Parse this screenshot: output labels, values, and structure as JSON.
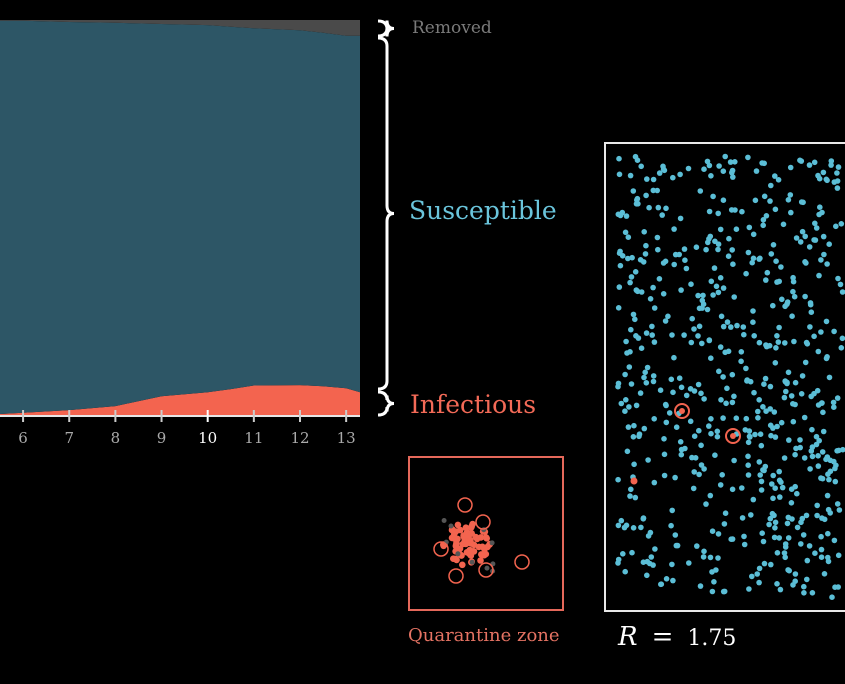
{
  "colors": {
    "susceptible": "#2d5666",
    "infectious": "#f3644f",
    "removed": "#4a4a4a",
    "susceptible_dot": "#5bbed6",
    "infectious_label": "#f36a57",
    "susceptible_label": "#6ac5dc",
    "removed_label": "#7a7a7a",
    "quarantine_label": "#e57363",
    "axis": "#aaaaaa"
  },
  "legend": {
    "removed": "Removed",
    "susceptible": "Susceptible",
    "infectious": "Infectious"
  },
  "quarantine": {
    "label": "Quarantine zone"
  },
  "readout": {
    "symbol": "R",
    "equals": "=",
    "value": "1.75"
  },
  "chart_data": {
    "type": "area",
    "stacked": true,
    "x": [
      5.5,
      6,
      7,
      8,
      9,
      10,
      10.5,
      11,
      12,
      12.5,
      13,
      13.3
    ],
    "xlim": [
      5.5,
      13.3
    ],
    "x_ticks": [
      6,
      7,
      8,
      9,
      10,
      11,
      12,
      13
    ],
    "x_tick_labels": [
      "6",
      "7",
      "8",
      "9",
      "10",
      "11",
      "12",
      "13"
    ],
    "highlighted_tick": "10",
    "ylim": [
      0,
      1
    ],
    "series": [
      {
        "name": "Infectious",
        "values": [
          0.005,
          0.008,
          0.015,
          0.025,
          0.05,
          0.06,
          0.068,
          0.077,
          0.078,
          0.075,
          0.07,
          0.06
        ]
      },
      {
        "name": "Susceptible",
        "values": [
          0.993,
          0.99,
          0.98,
          0.968,
          0.94,
          0.927,
          0.915,
          0.902,
          0.896,
          0.893,
          0.89,
          0.9
        ]
      },
      {
        "name": "Removed",
        "values": [
          0.002,
          0.002,
          0.005,
          0.007,
          0.01,
          0.013,
          0.017,
          0.021,
          0.026,
          0.032,
          0.04,
          0.04
        ]
      }
    ]
  }
}
